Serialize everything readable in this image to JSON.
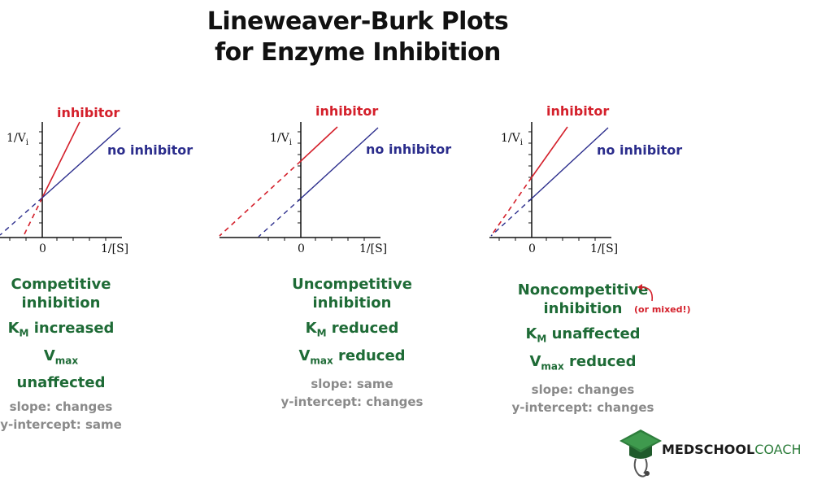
{
  "title_line1": "Lineweaver-Burk Plots",
  "title_line2": "for Enzyme Inhibition",
  "colors": {
    "inhibitor": "#d4202b",
    "no_inhibitor": "#2b2d8c",
    "green": "#1e6b36",
    "gray": "#8a8a8a"
  },
  "axes": {
    "y_label": "1/V",
    "y_label_sub": "i",
    "x_label": "1/[S]",
    "origin": "0"
  },
  "legend": {
    "inhibitor": "inhibitor",
    "no_inhibitor": "no inhibitor"
  },
  "panels": [
    {
      "type": "competitive",
      "title1": "Competitive",
      "title2": "inhibition",
      "km_prefix": "K",
      "km_sub": "M",
      "km_text": " increased",
      "vmax_prefix": "V",
      "vmax_sub": "max",
      "vmax_text": " unaffected",
      "slope": "slope: changes",
      "intercept": "y-intercept: same"
    },
    {
      "type": "uncompetitive",
      "title1": "Uncompetitive",
      "title2": "inhibition",
      "km_prefix": "K",
      "km_sub": "M",
      "km_text": " reduced",
      "vmax_prefix": "V",
      "vmax_sub": "max",
      "vmax_text": " reduced",
      "slope": "slope: same",
      "intercept": "y-intercept: changes"
    },
    {
      "type": "noncompetitive",
      "title1": "Noncompetitive",
      "title2": "inhibition",
      "km_prefix": "K",
      "km_sub": "M",
      "km_text": " unaffected",
      "vmax_prefix": "V",
      "vmax_sub": "max",
      "vmax_text": " reduced",
      "slope": "slope: changes",
      "intercept": "y-intercept: changes",
      "note": "(or mixed!)"
    }
  ],
  "brand": {
    "part1": "MEDSCHOOL",
    "part2": "COACH"
  }
}
